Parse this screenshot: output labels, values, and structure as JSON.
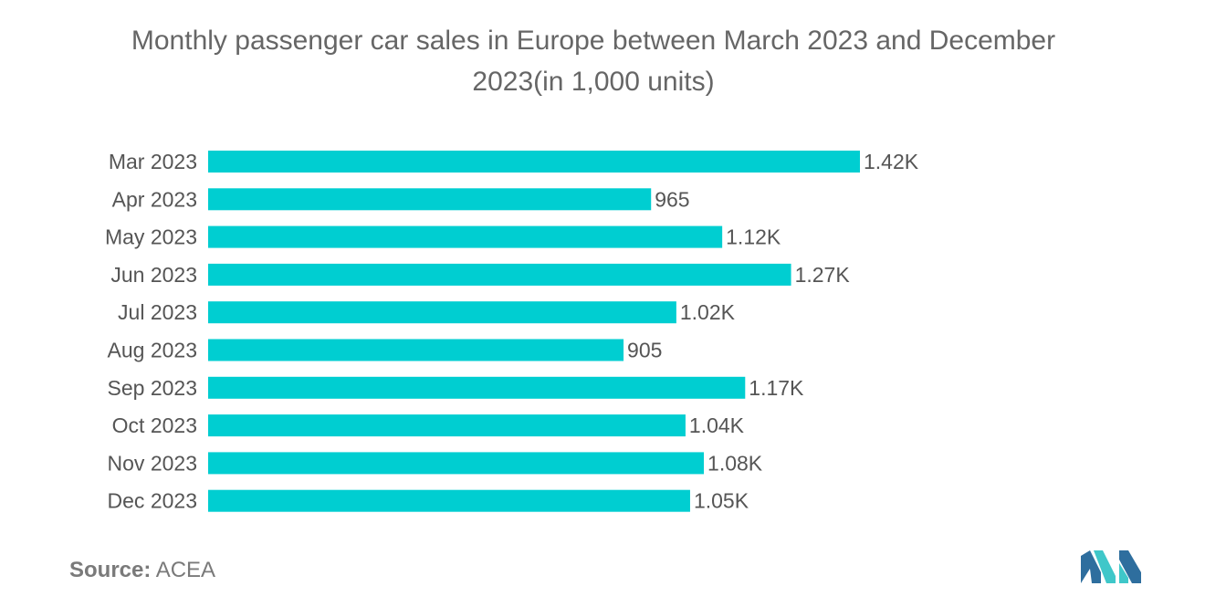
{
  "colors": {
    "bar": "#00CED1",
    "text": "#555555",
    "title": "#666666",
    "logo_dark": "#2E6E9E",
    "logo_light": "#3FC7C9"
  },
  "source": {
    "label": "Source:",
    "value": "ACEA"
  },
  "logo": {
    "icon": "mordor-intelligence-logo-icon"
  },
  "chart_data": {
    "type": "bar",
    "orientation": "horizontal",
    "title": "Monthly passenger car sales in Europe between March 2023 and December 2023(in 1,000 units)",
    "xlabel": "",
    "ylabel": "",
    "grid": false,
    "xlim": [
      0,
      1600
    ],
    "categories": [
      "Mar 2023",
      "Apr 2023",
      "May 2023",
      "Jun 2023",
      "Jul 2023",
      "Aug 2023",
      "Sep 2023",
      "Oct 2023",
      "Nov 2023",
      "Dec 2023"
    ],
    "values": [
      1420,
      965,
      1120,
      1270,
      1020,
      905,
      1170,
      1040,
      1080,
      1050
    ],
    "data_labels": [
      "1.42K",
      "965",
      "1.12K",
      "1.27K",
      "1.02K",
      "905",
      "1.17K",
      "1.04K",
      "1.08K",
      "1.05K"
    ]
  }
}
